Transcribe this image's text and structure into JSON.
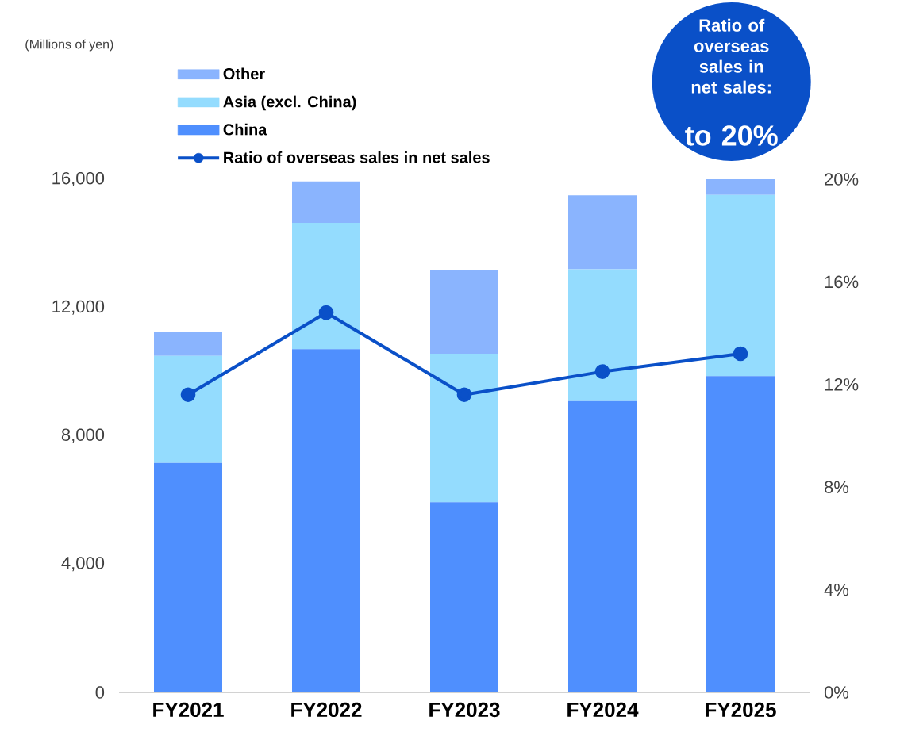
{
  "chart_data": {
    "type": "bar",
    "stacked": true,
    "categories": [
      "FY2021",
      "FY2022",
      "FY2023",
      "FY2024",
      "FY2025"
    ],
    "series": [
      {
        "name": "China",
        "color": "#4f8ffe",
        "values": [
          7150,
          10700,
          5930,
          9080,
          9860
        ]
      },
      {
        "name": "Asia (excl. China)",
        "color": "#94dcfe",
        "values": [
          3340,
          3940,
          4630,
          4110,
          5650
        ]
      },
      {
        "name": "Other",
        "color": "#8ab4fe",
        "values": [
          740,
          1290,
          2610,
          2310,
          490
        ]
      },
      {
        "name": "Ratio of overseas sales in net sales",
        "type": "line",
        "axis": "y2",
        "color": "#0a50c8",
        "values": [
          11.6,
          14.8,
          11.6,
          12.5,
          13.2
        ]
      }
    ],
    "ylim": [
      0,
      16000
    ],
    "yticks": [
      0,
      {
        "value": 4000,
        "label": "4,000"
      },
      {
        "value": 8000,
        "label": "8,000"
      },
      {
        "value": 12000,
        "label": "12,000"
      },
      {
        "value": 16000,
        "label": "16,000"
      }
    ],
    "y2lim": [
      0,
      20
    ],
    "y2ticks": [
      {
        "value": 0,
        "label": "0%"
      },
      {
        "value": 4,
        "label": "4%"
      },
      {
        "value": 8,
        "label": "8%"
      },
      {
        "value": 12,
        "label": "12%"
      },
      {
        "value": 16,
        "label": "16%"
      },
      {
        "value": 20,
        "label": "20%"
      }
    ],
    "marker": "circle",
    "legend": "top left",
    "annotations": [
      "(Millions of yen)",
      "Ratio of overseas sales in net sales:",
      "to 20%"
    ]
  }
}
